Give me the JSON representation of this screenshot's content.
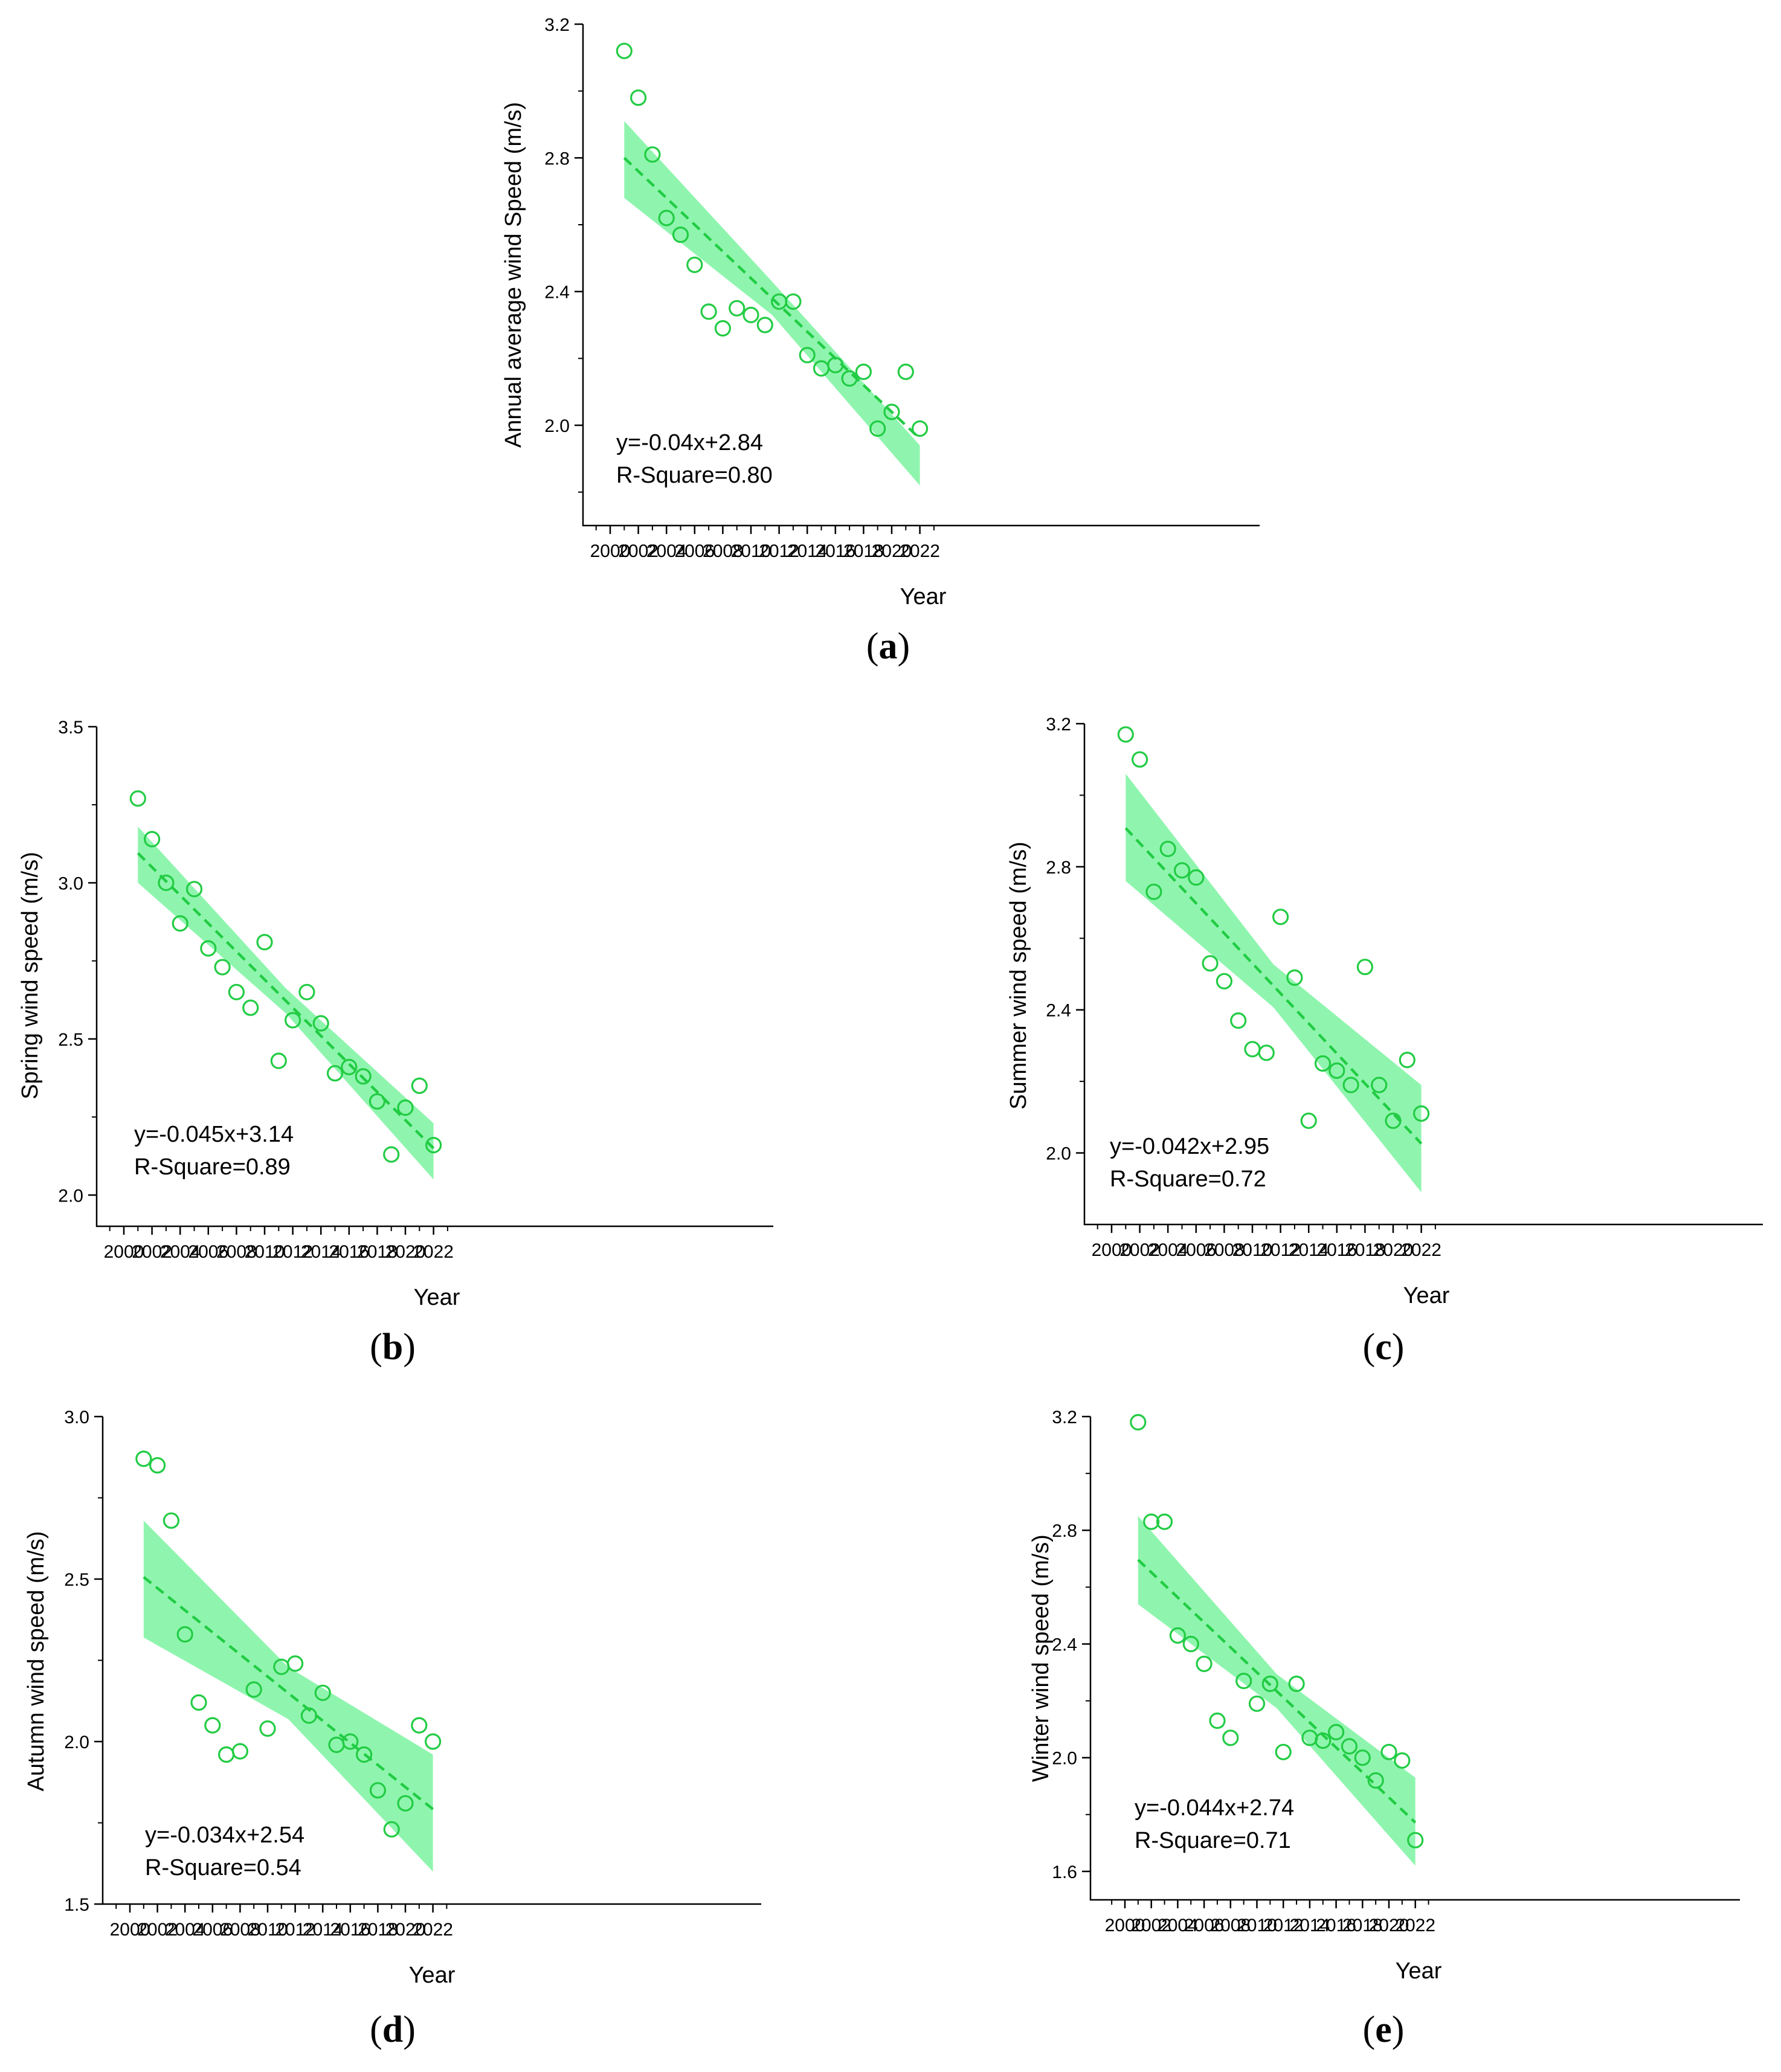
{
  "figure": {
    "panels": [
      {
        "id": "a",
        "caption_open": "(",
        "caption_letter": "a",
        "caption_close": ")",
        "equation": "y=-0.04x+2.84",
        "r_square": "R-Square=0.80",
        "chart_data": {
          "type": "scatter",
          "xlabel": "Year",
          "ylabel": "Annual average wind Speed (m/s)",
          "xlim": [
            1999,
            2023
          ],
          "ylim": [
            1.7,
            3.2
          ],
          "xticks": [
            2000,
            2002,
            2004,
            2006,
            2008,
            2010,
            2012,
            2014,
            2016,
            2018,
            2020,
            2022
          ],
          "yticks": [
            2.0,
            2.4,
            2.8,
            3.2
          ],
          "ytick_labels": [
            "2.0",
            "2.4",
            "2.8",
            "3.2"
          ],
          "x": [
            2001,
            2002,
            2003,
            2004,
            2005,
            2006,
            2007,
            2008,
            2009,
            2010,
            2011,
            2012,
            2013,
            2014,
            2015,
            2016,
            2017,
            2018,
            2019,
            2020,
            2021,
            2022
          ],
          "y": [
            3.12,
            2.98,
            2.81,
            2.62,
            2.57,
            2.48,
            2.34,
            2.29,
            2.35,
            2.33,
            2.3,
            2.37,
            2.37,
            2.21,
            2.17,
            2.18,
            2.14,
            2.16,
            1.99,
            2.04,
            2.16,
            1.99
          ],
          "fit": {
            "slope": -0.04,
            "intercept": 2.84,
            "x0": 2001,
            "x1": 2022
          },
          "band": {
            "upper": [
              2.91,
              1.94
            ],
            "lower": [
              2.68,
              1.82
            ],
            "mid_width": 0.05
          },
          "colors": {
            "points": "#22cc44",
            "fit_line": "#22cc44",
            "band": "#8ff5ae"
          }
        }
      },
      {
        "id": "b",
        "caption_open": "(",
        "caption_letter": "b",
        "caption_close": ")",
        "equation": "y=-0.045x+3.14",
        "r_square": "R-Square=0.89",
        "chart_data": {
          "type": "scatter",
          "xlabel": "Year",
          "ylabel": "Spring wind speed (m/s)",
          "xlim": [
            1999,
            2023
          ],
          "ylim": [
            1.9,
            3.5
          ],
          "xticks": [
            2000,
            2002,
            2004,
            2006,
            2008,
            2010,
            2012,
            2014,
            2016,
            2018,
            2020,
            2022
          ],
          "yticks": [
            2.0,
            2.5,
            3.0,
            3.5
          ],
          "ytick_labels": [
            "2.0",
            "2.5",
            "3.0",
            "3.5"
          ],
          "x": [
            2001,
            2002,
            2003,
            2004,
            2005,
            2006,
            2007,
            2008,
            2009,
            2010,
            2011,
            2012,
            2013,
            2014,
            2015,
            2016,
            2017,
            2018,
            2019,
            2020,
            2021,
            2022
          ],
          "y": [
            3.27,
            3.14,
            3.0,
            2.87,
            2.98,
            2.79,
            2.73,
            2.65,
            2.6,
            2.81,
            2.43,
            2.56,
            2.65,
            2.55,
            2.39,
            2.41,
            2.38,
            2.3,
            2.13,
            2.28,
            2.35,
            2.16
          ],
          "fit": {
            "slope": -0.045,
            "intercept": 3.14,
            "x0": 2001,
            "x1": 2022
          },
          "band": {
            "upper": [
              3.18,
              2.23
            ],
            "lower": [
              3.0,
              2.05
            ],
            "mid_width": 0.04
          },
          "colors": {
            "points": "#22cc44",
            "fit_line": "#22cc44",
            "band": "#8ff5ae"
          }
        }
      },
      {
        "id": "c",
        "caption_open": "(",
        "caption_letter": "c",
        "caption_close": ")",
        "equation": "y=-0.042x+2.95",
        "r_square": "R-Square=0.72",
        "chart_data": {
          "type": "scatter",
          "xlabel": "Year",
          "ylabel": "Summer wind speed (m/s)",
          "xlim": [
            1999,
            2023
          ],
          "ylim": [
            1.8,
            3.2
          ],
          "xticks": [
            2000,
            2002,
            2004,
            2006,
            2008,
            2010,
            2012,
            2014,
            2016,
            2018,
            2020,
            2022
          ],
          "yticks": [
            2.0,
            2.4,
            2.8,
            3.2
          ],
          "ytick_labels": [
            "2.0",
            "2.4",
            "2.8",
            "3.2"
          ],
          "x": [
            2001,
            2002,
            2003,
            2004,
            2005,
            2006,
            2007,
            2008,
            2009,
            2010,
            2011,
            2012,
            2013,
            2014,
            2015,
            2016,
            2017,
            2018,
            2019,
            2020,
            2021,
            2022
          ],
          "y": [
            3.17,
            3.1,
            2.73,
            2.85,
            2.79,
            2.77,
            2.53,
            2.48,
            2.37,
            2.29,
            2.28,
            2.66,
            2.49,
            2.09,
            2.25,
            2.23,
            2.19,
            2.52,
            2.19,
            2.09,
            2.26,
            2.11
          ],
          "fit": {
            "slope": -0.042,
            "intercept": 2.95,
            "x0": 2001,
            "x1": 2022
          },
          "band": {
            "upper": [
              3.06,
              2.19
            ],
            "lower": [
              2.76,
              1.89
            ],
            "mid_width": 0.06
          },
          "colors": {
            "points": "#22cc44",
            "fit_line": "#22cc44",
            "band": "#8ff5ae"
          }
        }
      },
      {
        "id": "d",
        "caption_open": "(",
        "caption_letter": "d",
        "caption_close": ")",
        "equation": "y=-0.034x+2.54",
        "r_square": "R-Square=0.54",
        "chart_data": {
          "type": "scatter",
          "xlabel": "Year",
          "ylabel": "Autumn wind speed (m/s)",
          "xlim": [
            1999,
            2023
          ],
          "ylim": [
            1.5,
            3.0
          ],
          "xticks": [
            2000,
            2002,
            2004,
            2006,
            2008,
            2010,
            2012,
            2014,
            2016,
            2018,
            2020,
            2022
          ],
          "yticks": [
            1.5,
            2.0,
            2.5,
            3.0
          ],
          "ytick_labels": [
            "1.5",
            "2.0",
            "2.5",
            "3.0"
          ],
          "x": [
            2001,
            2002,
            2003,
            2004,
            2005,
            2006,
            2007,
            2008,
            2009,
            2010,
            2011,
            2012,
            2013,
            2014,
            2015,
            2016,
            2017,
            2018,
            2019,
            2020,
            2021,
            2022
          ],
          "y": [
            2.87,
            2.85,
            2.68,
            2.33,
            2.12,
            2.05,
            1.96,
            1.97,
            2.16,
            2.04,
            2.23,
            2.24,
            2.08,
            2.15,
            1.99,
            2.0,
            1.96,
            1.85,
            1.73,
            1.81,
            2.05,
            2.0
          ],
          "fit": {
            "slope": -0.034,
            "intercept": 2.54,
            "x0": 2001,
            "x1": 2022
          },
          "band": {
            "upper": [
              2.68,
              1.96
            ],
            "lower": [
              2.32,
              1.6
            ],
            "mid_width": 0.08
          },
          "colors": {
            "points": "#22cc44",
            "fit_line": "#22cc44",
            "band": "#8ff5ae"
          }
        }
      },
      {
        "id": "e",
        "caption_open": "(",
        "caption_letter": "e",
        "caption_close": ")",
        "equation": "y=-0.044x+2.74",
        "r_square": "R-Square=0.71",
        "chart_data": {
          "type": "scatter",
          "xlabel": "Year",
          "ylabel": "Winter wind speed (m/s)",
          "xlim": [
            1999,
            2023
          ],
          "ylim": [
            1.5,
            3.2
          ],
          "xticks": [
            2000,
            2002,
            2004,
            2006,
            2008,
            2010,
            2012,
            2014,
            2016,
            2018,
            2020,
            2022
          ],
          "yticks": [
            1.6,
            2.0,
            2.4,
            2.8,
            3.2
          ],
          "ytick_labels": [
            "1.6",
            "2.0",
            "2.4",
            "2.8",
            "3.2"
          ],
          "x": [
            2001,
            2002,
            2003,
            2004,
            2005,
            2006,
            2007,
            2008,
            2009,
            2010,
            2011,
            2012,
            2013,
            2014,
            2015,
            2016,
            2017,
            2018,
            2019,
            2020,
            2021,
            2022
          ],
          "y": [
            3.18,
            2.83,
            2.83,
            2.43,
            2.4,
            2.33,
            2.13,
            2.07,
            2.27,
            2.19,
            2.26,
            2.02,
            2.26,
            2.07,
            2.06,
            2.09,
            2.04,
            2.0,
            1.92,
            2.02,
            1.99,
            1.71
          ],
          "fit": {
            "slope": -0.044,
            "intercept": 2.74,
            "x0": 2001,
            "x1": 2022
          },
          "band": {
            "upper": [
              2.85,
              1.93
            ],
            "lower": [
              2.54,
              1.62
            ],
            "mid_width": 0.06
          },
          "colors": {
            "points": "#22cc44",
            "fit_line": "#22cc44",
            "band": "#8ff5ae"
          }
        }
      }
    ]
  }
}
